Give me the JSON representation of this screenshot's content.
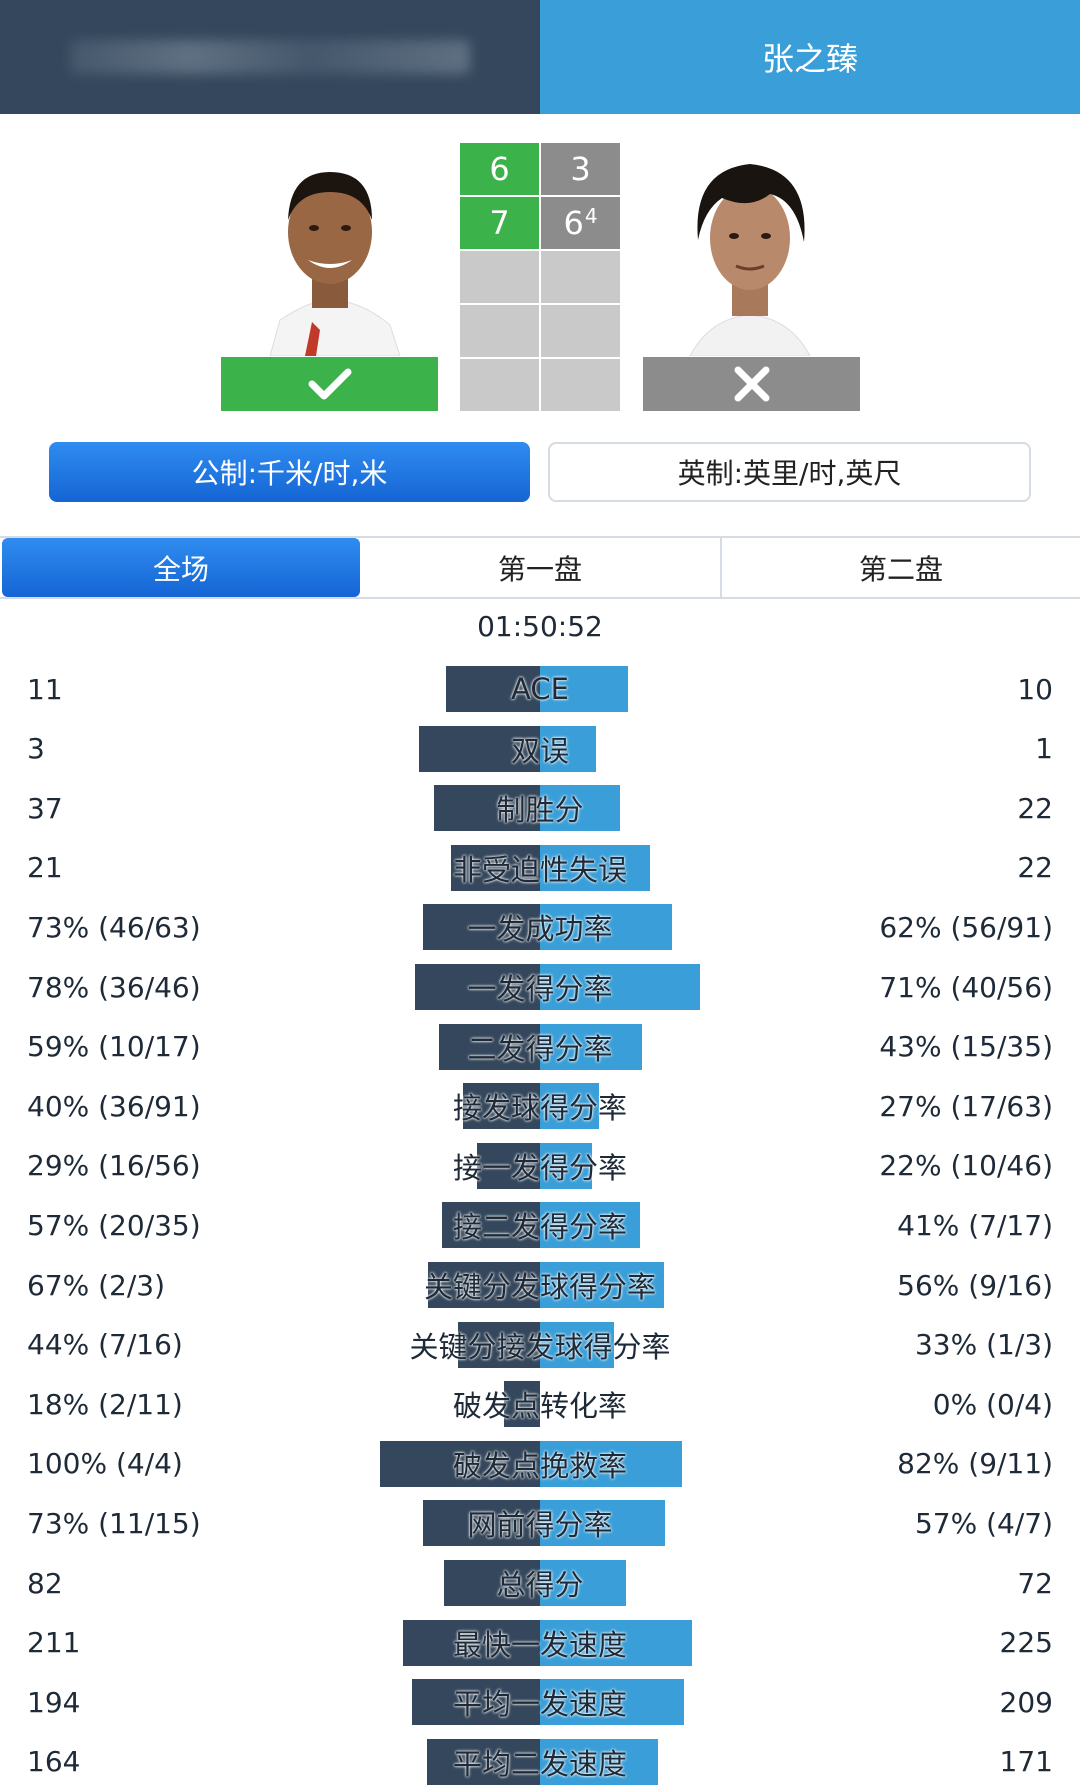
{
  "header": {
    "player2_name": "张之臻"
  },
  "score": {
    "sets": [
      {
        "p1": "6",
        "p2": "3",
        "p2_tiebreak": ""
      },
      {
        "p1": "7",
        "p2": "6",
        "p2_tiebreak": "4"
      }
    ],
    "winner": "player1"
  },
  "units": {
    "metric_label": "公制:千米/时,米",
    "imperial_label": "英制:英里/时,英尺",
    "selected": "metric"
  },
  "tabs": {
    "all": "全场",
    "set1": "第一盘",
    "set2": "第二盘",
    "selected": "all"
  },
  "duration": "01:50:52",
  "colors": {
    "player1": "#34475c",
    "player2": "#3a9fd8",
    "win": "#3bb24a",
    "lose": "#8c8c8c"
  },
  "stats": [
    {
      "label": "ACE",
      "left": "11",
      "right": "10",
      "left_bar": 0.71,
      "right_bar": 0.66
    },
    {
      "label": "双误",
      "left": "3",
      "right": "1",
      "left_bar": 0.91,
      "right_bar": 0.42
    },
    {
      "label": "制胜分",
      "left": "37",
      "right": "22",
      "left_bar": 0.8,
      "right_bar": 0.6
    },
    {
      "label": "非受迫性失误",
      "left": "21",
      "right": "22",
      "left_bar": 0.67,
      "right_bar": 0.83
    },
    {
      "label": "一发成功率",
      "left": "73% (46/63)",
      "right": "62% (56/91)",
      "left_bar": 0.88,
      "right_bar": 0.99
    },
    {
      "label": "一发得分率",
      "left": "78% (36/46)",
      "right": "71% (40/56)",
      "left_bar": 0.94,
      "right_bar": 1.2
    },
    {
      "label": "二发得分率",
      "left": "59% (10/17)",
      "right": "43% (15/35)",
      "left_bar": 0.76,
      "right_bar": 0.77
    },
    {
      "label": "接发球得分率",
      "left": "40% (36/91)",
      "right": "27% (17/63)",
      "left_bar": 0.58,
      "right_bar": 0.44
    },
    {
      "label": "接一发得分率",
      "left": "29% (16/56)",
      "right": "22% (10/46)",
      "left_bar": 0.47,
      "right_bar": 0.39
    },
    {
      "label": "接二发得分率",
      "left": "57% (20/35)",
      "right": "41% (7/17)",
      "left_bar": 0.74,
      "right_bar": 0.75
    },
    {
      "label": "关键分发球得分率",
      "left": "67% (2/3)",
      "right": "56% (9/16)",
      "left_bar": 0.84,
      "right_bar": 0.93
    },
    {
      "label": "关键分接发球得分率",
      "left": "44% (7/16)",
      "right": "33% (1/3)",
      "left_bar": 0.62,
      "right_bar": 0.56
    },
    {
      "label": "破发点转化率",
      "left": "18% (2/11)",
      "right": "0% (0/4)",
      "left_bar": 0.27,
      "right_bar": 0.0
    },
    {
      "label": "破发点挽救率",
      "left": "100% (4/4)",
      "right": "82% (9/11)",
      "left_bar": 1.2,
      "right_bar": 1.07
    },
    {
      "label": "网前得分率",
      "left": "73% (11/15)",
      "right": "57% (4/7)",
      "left_bar": 0.88,
      "right_bar": 0.94
    },
    {
      "label": "总得分",
      "left": "82",
      "right": "72",
      "left_bar": 0.72,
      "right_bar": 0.65
    },
    {
      "label": "最快一发速度",
      "left": "211",
      "right": "225",
      "left_bar": 1.03,
      "right_bar": 1.14
    },
    {
      "label": "平均一发速度",
      "left": "194",
      "right": "209",
      "left_bar": 0.96,
      "right_bar": 1.08
    },
    {
      "label": "平均二发速度",
      "left": "164",
      "right": "171",
      "left_bar": 0.85,
      "right_bar": 0.89
    }
  ]
}
